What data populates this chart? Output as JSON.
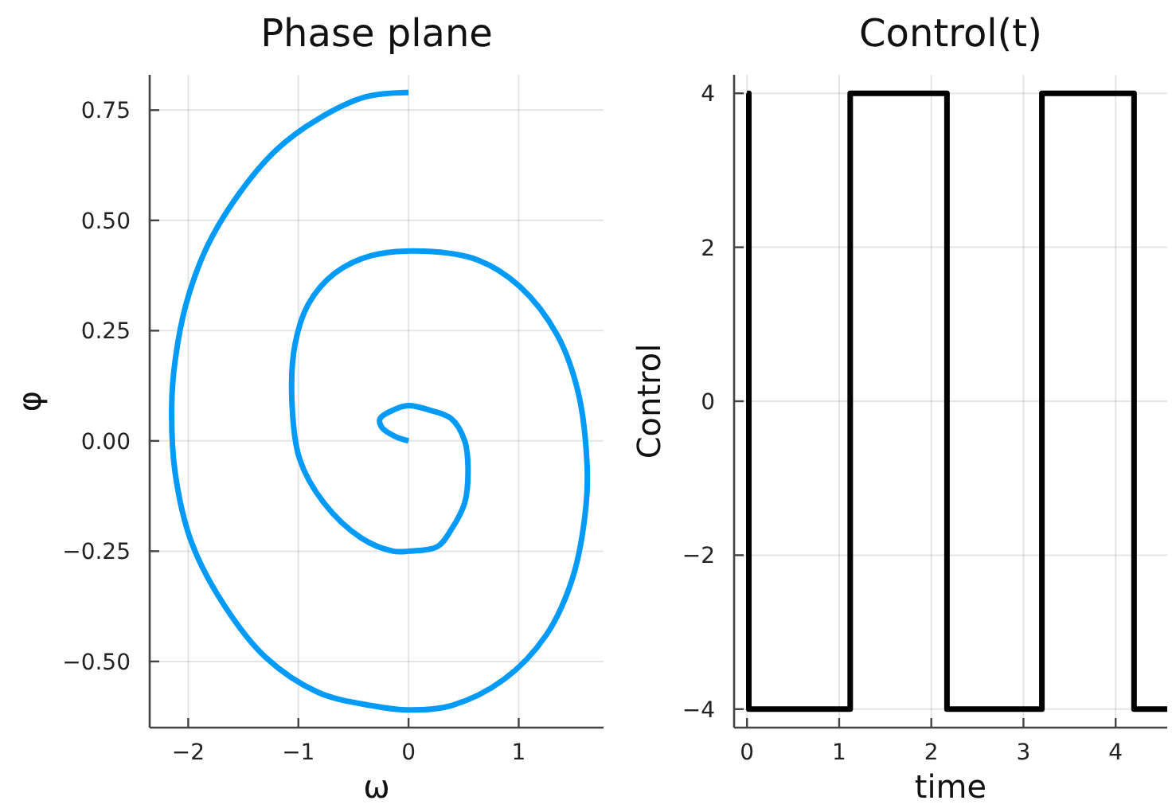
{
  "chart_data": [
    {
      "type": "line",
      "title": "Phase plane",
      "xlabel": "ω",
      "ylabel": "φ",
      "series": [
        {
          "color": "#009af9",
          "x": [
            0,
            -0.39,
            -0.82,
            -1.2,
            -1.54,
            -1.83,
            -2.02,
            -2.12,
            -2.15,
            -2.12,
            -1.97,
            -1.68,
            -1.3,
            -0.82,
            -0.34,
            0,
            0.39,
            0.87,
            1.25,
            1.49,
            1.61,
            1.62,
            1.54,
            1.35,
            1.01,
            0.63,
            0.14,
            -0.34,
            -0.67,
            -0.91,
            -1.03,
            -1.06,
            -0.99,
            -0.77,
            -0.43,
            -0.14,
            0,
            0.26,
            0.39,
            0.51,
            0.54,
            0.51,
            0.39,
            0.19,
            0,
            -0.14,
            -0.26,
            -0.24,
            -0.12,
            0
          ],
          "values": [
            0.79,
            0.78,
            0.73,
            0.66,
            0.56,
            0.44,
            0.31,
            0.18,
            0.08,
            -0.07,
            -0.23,
            -0.37,
            -0.49,
            -0.57,
            -0.6,
            -0.61,
            -0.6,
            -0.54,
            -0.44,
            -0.31,
            -0.15,
            -0.05,
            0.11,
            0.24,
            0.35,
            0.41,
            0.43,
            0.42,
            0.38,
            0.31,
            0.22,
            0.1,
            -0.04,
            -0.14,
            -0.22,
            -0.25,
            -0.25,
            -0.24,
            -0.2,
            -0.14,
            -0.07,
            0,
            0.05,
            0.07,
            0.08,
            0.07,
            0.05,
            0.03,
            0.01,
            0
          ]
        }
      ],
      "xlim": [
        -2.35,
        1.77
      ],
      "ylim": [
        -0.65,
        0.83
      ],
      "xticks": [
        {
          "value": -2,
          "label": "−2"
        },
        {
          "value": -1,
          "label": "−1"
        },
        0,
        1
      ],
      "yticks": [
        {
          "value": -0.5,
          "label": "−0.50"
        },
        {
          "value": -0.25,
          "label": "−0.25"
        },
        {
          "value": 0,
          "label": "0.00"
        },
        {
          "value": 0.25,
          "label": "0.25"
        },
        {
          "value": 0.5,
          "label": "0.50"
        },
        {
          "value": 0.75,
          "label": "0.75"
        }
      ],
      "grid": true
    },
    {
      "type": "step",
      "title": "Control(t)",
      "xlabel": "time",
      "ylabel": "Control",
      "series": [
        {
          "color": "#000000",
          "x": [
            0,
            0.02,
            1.12,
            2.17,
            3.2,
            4.2,
            4.56
          ],
          "values": [
            4,
            -4,
            4,
            -4,
            4,
            -4,
            -4
          ]
        }
      ],
      "xlim": [
        -0.14,
        4.56
      ],
      "ylim": [
        -4.24,
        4.24
      ],
      "xticks": [
        0,
        1,
        2,
        3,
        4
      ],
      "yticks": [
        {
          "value": -4,
          "label": "−4"
        },
        {
          "value": -2,
          "label": "−2"
        },
        0,
        2,
        4
      ],
      "grid": true
    }
  ]
}
